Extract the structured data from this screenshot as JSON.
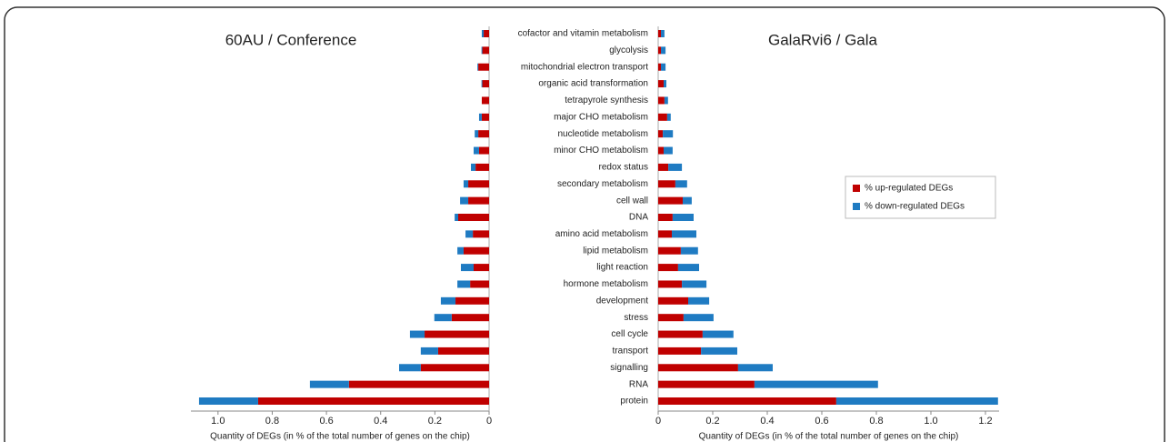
{
  "chart_data": [
    {
      "type": "bar",
      "orientation": "horizontal",
      "stacked": true,
      "title": "60AU / Conference",
      "x_label": "Quantity of DEGs (in % of the total number of genes on the chip)",
      "xlim": [
        1.1,
        0
      ],
      "xticks": [
        {
          "value": 1,
          "label": "1.0"
        },
        0.8,
        0.6,
        0.4,
        0.2,
        0
      ],
      "series": [
        {
          "color": "#c00000",
          "values": [
            0.02,
            0.025,
            0.04,
            0.025,
            0.027,
            0.027,
            0.04,
            0.037,
            0.05,
            0.077,
            0.077,
            0.114,
            0.06,
            0.094,
            0.057,
            0.07,
            0.124,
            0.138,
            0.238,
            0.188,
            0.252,
            0.517,
            0.852
          ]
        },
        {
          "color": "#1f7bc2",
          "values": [
            0.007,
            0.003,
            0.003,
            0.003,
            0,
            0.01,
            0.013,
            0.02,
            0.017,
            0.017,
            0.03,
            0.013,
            0.027,
            0.023,
            0.047,
            0.047,
            0.054,
            0.064,
            0.054,
            0.064,
            0.08,
            0.144,
            0.218
          ]
        }
      ]
    },
    {
      "type": "bar",
      "orientation": "horizontal",
      "stacked": true,
      "title": "GalaRvi6 / Gala",
      "x_label": "Quantity of DEGs (in % of the total number of genes on the chip)",
      "categories": [
        "cofactor and vitamin metabolism",
        "glycolysis",
        "mitochondrial electron transport",
        "organic acid transformation",
        "tetrapyrole synthesis",
        "major CHO metabolism",
        "nucleotide metabolism",
        "minor CHO metabolism",
        "redox status",
        "secondary metabolism",
        "cell wall",
        "DNA",
        "amino acid metabolism",
        "lipid metabolism",
        "light reaction",
        "hormone metabolism",
        "development",
        "stress",
        "cell cycle",
        "transport",
        "signalling",
        "RNA",
        "protein"
      ],
      "xlim": [
        0,
        1.25
      ],
      "xticks": [
        0,
        0.2,
        0.4,
        0.6,
        0.8,
        {
          "value": 1,
          "label": "1.0"
        },
        1.2
      ],
      "legend": "right",
      "series": [
        {
          "name": "% up-regulated DEGs",
          "color": "#c00000",
          "values": [
            0.01,
            0.01,
            0.01,
            0.02,
            0.023,
            0.033,
            0.017,
            0.02,
            0.037,
            0.063,
            0.09,
            0.053,
            0.05,
            0.083,
            0.073,
            0.087,
            0.11,
            0.093,
            0.163,
            0.157,
            0.293,
            0.353,
            0.653
          ]
        },
        {
          "name": "% down-regulated DEGs",
          "color": "#1f7bc2",
          "values": [
            0.013,
            0.017,
            0.017,
            0.01,
            0.013,
            0.013,
            0.037,
            0.033,
            0.05,
            0.043,
            0.033,
            0.077,
            0.09,
            0.063,
            0.077,
            0.09,
            0.077,
            0.11,
            0.113,
            0.133,
            0.127,
            0.453,
            0.593
          ]
        }
      ]
    }
  ]
}
